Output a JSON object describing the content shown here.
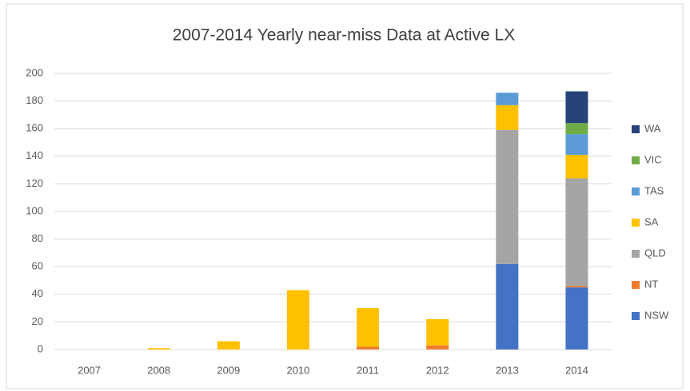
{
  "chart_data": {
    "type": "stacked_bar",
    "title": "2007-2014 Yearly near-miss Data at Active LX",
    "categories": [
      "2007",
      "2008",
      "2009",
      "2010",
      "2011",
      "2012",
      "2013",
      "2014"
    ],
    "series": [
      {
        "name": "NSW",
        "color": "#4472c4",
        "values": [
          0,
          0,
          0,
          0,
          0,
          0,
          62,
          45
        ]
      },
      {
        "name": "NT",
        "color": "#ed7d31",
        "values": [
          0,
          0,
          0,
          0,
          2,
          3,
          0,
          1
        ]
      },
      {
        "name": "QLD",
        "color": "#a5a5a5",
        "values": [
          0,
          0,
          0,
          0,
          0,
          0,
          97,
          78
        ]
      },
      {
        "name": "SA",
        "color": "#ffc000",
        "values": [
          0,
          1,
          6,
          43,
          28,
          19,
          18,
          17
        ]
      },
      {
        "name": "TAS",
        "color": "#5b9bd5",
        "values": [
          0,
          0,
          0,
          0,
          0,
          0,
          9,
          15
        ]
      },
      {
        "name": "VIC",
        "color": "#70ad47",
        "values": [
          0,
          0,
          0,
          0,
          0,
          0,
          0,
          8
        ]
      },
      {
        "name": "WA",
        "color": "#264478",
        "values": [
          0,
          0,
          0,
          0,
          0,
          0,
          0,
          23
        ]
      }
    ],
    "ylim": [
      0,
      200
    ],
    "yticks": [
      0,
      20,
      40,
      60,
      80,
      100,
      120,
      140,
      160,
      180,
      200
    ],
    "grid": true,
    "legend": "right"
  }
}
